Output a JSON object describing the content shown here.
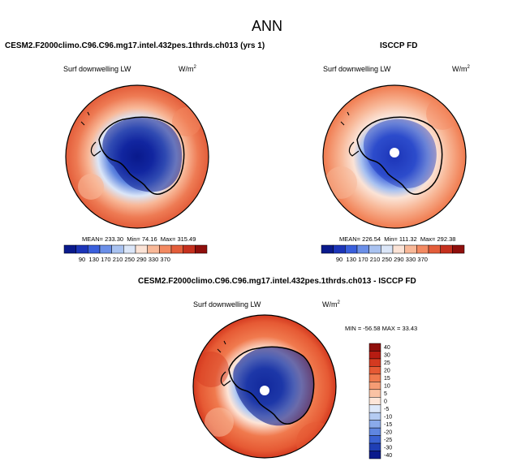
{
  "figure": {
    "title": "ANN",
    "variable": "Surf downwelling LW",
    "units_base": "W/m",
    "units_exp": "2",
    "shared_ticks": [
      "90",
      "130",
      "170",
      "210",
      "250",
      "290",
      "330",
      "370"
    ],
    "diff_ticks": [
      "40",
      "30",
      "25",
      "20",
      "15",
      "10",
      "5",
      "0",
      "-5",
      "-10",
      "-15",
      "-20",
      "-25",
      "-30",
      "-40"
    ]
  },
  "panels": {
    "model": {
      "case": "CESM2.F2000climo.C96.C96.mg17.intel.432pes.1thrds.ch013 (yrs 1)",
      "mean_label": "MEAN=",
      "mean": "233.30",
      "min_label": "Min=",
      "min": "74.16",
      "max_label": "Max=",
      "max": "315.49"
    },
    "obs": {
      "case": "ISCCP FD",
      "mean_label": "MEAN=",
      "mean": "226.54",
      "min_label": "Min=",
      "min": "111.32",
      "max_label": "Max=",
      "max": "292.38"
    },
    "diff": {
      "case": "CESM2.F2000climo.C96.C96.mg17.intel.432pes.1thrds.ch013 - ISCCP FD",
      "minmax": "MIN = -56.58  MAX =  33.43"
    }
  },
  "colors": {
    "shared_colorbar": [
      "#0a1a8c",
      "#1c35b8",
      "#3a5fdc",
      "#6b8fe8",
      "#a9c2f0",
      "#dbe6f8",
      "#fbe3d6",
      "#f8b898",
      "#f38a62",
      "#e35d3a",
      "#c5301e",
      "#8f0f0c"
    ],
    "diff_colorbar": [
      "#8f0f0c",
      "#b71c12",
      "#d43a20",
      "#e65a34",
      "#f07a4e",
      "#f59c74",
      "#fac2a4",
      "#fde5d8",
      "#dde8fa",
      "#b4cbf2",
      "#8aaaea",
      "#5f86e0",
      "#3a62d2",
      "#1f3fb5",
      "#0a1a8c"
    ]
  }
}
